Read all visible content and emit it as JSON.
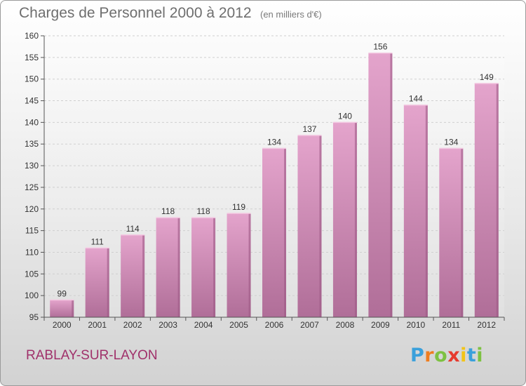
{
  "header": {
    "title": "Charges de Personnel 2000 à 2012",
    "subtitle": "(en milliers d'€)"
  },
  "footer": {
    "city": "RABLAY-SUR-LAYON",
    "logo": {
      "letters": [
        "P",
        "r",
        "o",
        "x",
        "i",
        "t",
        "i"
      ],
      "colors": [
        "#3aa0db",
        "#ee7d1f",
        "#7dc142",
        "#e63a2e",
        "#f2c418",
        "#3aa0db",
        "#7dc142"
      ]
    }
  },
  "colors": {
    "bar_top": "#e4a4cc",
    "bar_bottom": "#b06e98",
    "bar_side": "#9c5a86",
    "grid": "#cfcfcf",
    "axis": "#555555"
  },
  "chart_data": {
    "type": "bar",
    "title": "Charges de Personnel 2000 à 2012",
    "subtitle": "(en milliers d'€)",
    "categories": [
      "2000",
      "2001",
      "2002",
      "2003",
      "2004",
      "2005",
      "2006",
      "2007",
      "2008",
      "2009",
      "2010",
      "2011",
      "2012"
    ],
    "values": [
      99,
      111,
      114,
      118,
      118,
      119,
      134,
      137,
      140,
      156,
      144,
      134,
      149
    ],
    "ylim": [
      95,
      160
    ],
    "yticks": [
      95,
      100,
      105,
      110,
      115,
      120,
      125,
      130,
      135,
      140,
      145,
      150,
      155,
      160
    ],
    "grid": true,
    "data_labels": true
  }
}
